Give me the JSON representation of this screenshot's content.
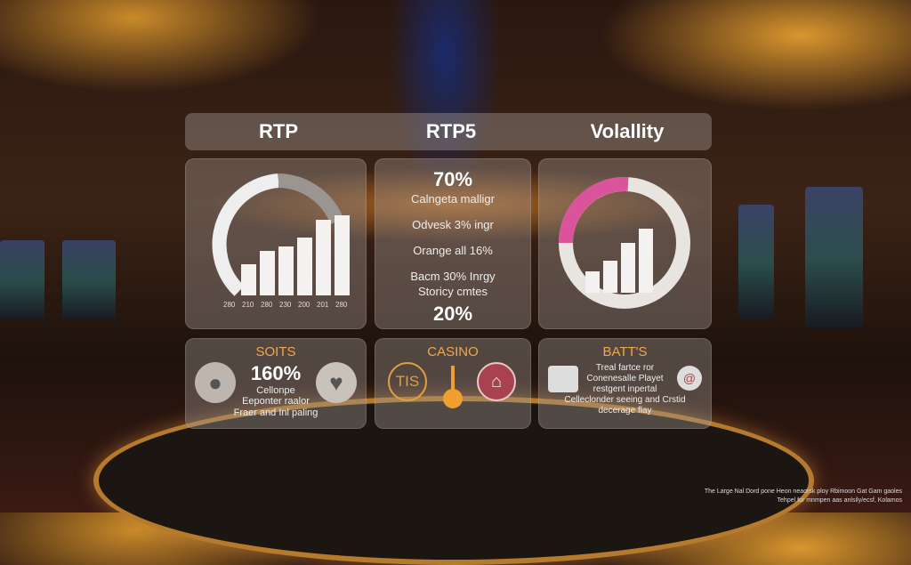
{
  "header": {
    "titles": [
      "RTP",
      "RTP5",
      "Volallity"
    ]
  },
  "panel_rtp": {
    "ticks": [
      "280",
      "210",
      "280",
      "230",
      "200",
      "201",
      "280"
    ],
    "bar_levels": [
      0.35,
      0.5,
      0.55,
      0.65,
      0.85,
      0.9
    ],
    "ring_colors": [
      "#eeeeee",
      "#9a9590"
    ]
  },
  "panel_stats": {
    "lines": [
      "70%",
      "Calngeta malligr",
      "Odvesk 3% ingr",
      "Orange all 16%",
      "Bacm 30% Inrgy",
      "Storicy cmtes",
      "20%"
    ]
  },
  "panel_volatility": {
    "bar_levels": [
      0.3,
      0.45,
      0.7,
      0.9
    ],
    "ring_colors": [
      "#e8e4e0",
      "#d9549a"
    ]
  },
  "panel_soits": {
    "title": "SOITS",
    "value": "160%",
    "lines": [
      "Cellonpe",
      "Eeponter raalor",
      "Fraer and Inl paling"
    ]
  },
  "panel_casino": {
    "title": "CASINO",
    "badge": "TIS",
    "accent": "#f0a030"
  },
  "panel_batts": {
    "title": "BATT'S",
    "lines": [
      "Treal fartce ror",
      "Conenesalle Playet",
      "restgent inpertal",
      "Celleclonder seeing and Crstid",
      "decerage flay"
    ]
  },
  "footer": {
    "lines": [
      "The Large Nal Dord pone Heon neaorsk ploy Rbimoon Gat Gam gaoles",
      "Tehpel for mnmpen aas anlsily/ecsf, Kolamos"
    ]
  }
}
